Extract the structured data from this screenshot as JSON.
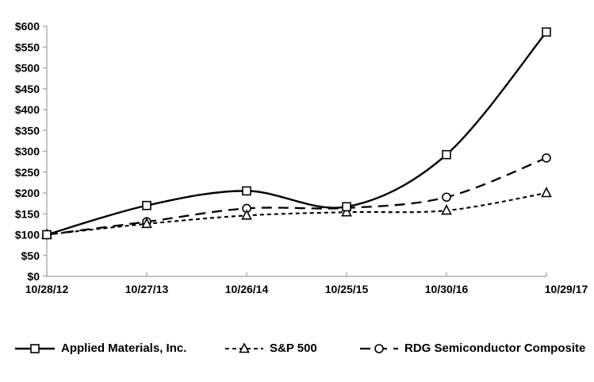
{
  "chart_data": {
    "type": "line",
    "title": "",
    "categories": [
      "10/28/12",
      "10/27/13",
      "10/26/14",
      "10/25/15",
      "10/30/16",
      "10/29/17"
    ],
    "series": [
      {
        "name": "Applied Materials, Inc.",
        "marker": "square",
        "dash": "solid",
        "values": [
          100,
          170,
          205,
          167,
          292,
          586
        ]
      },
      {
        "name": "S&P 500",
        "marker": "triangle",
        "dash": "short-dash",
        "values": [
          100,
          126,
          146,
          154,
          158,
          200
        ]
      },
      {
        "name": "RDG Semiconductor Composite",
        "marker": "circle",
        "dash": "long-dash",
        "values": [
          100,
          131,
          163,
          164,
          190,
          284
        ]
      }
    ],
    "ylim": [
      0,
      600
    ],
    "ytick_step": 50,
    "y_prefix": "$",
    "grid": false,
    "legend_position": "bottom",
    "colors": {
      "line": "#000000",
      "axis": "#a0a0a0",
      "text": "#000000",
      "background": "#ffffff"
    }
  }
}
